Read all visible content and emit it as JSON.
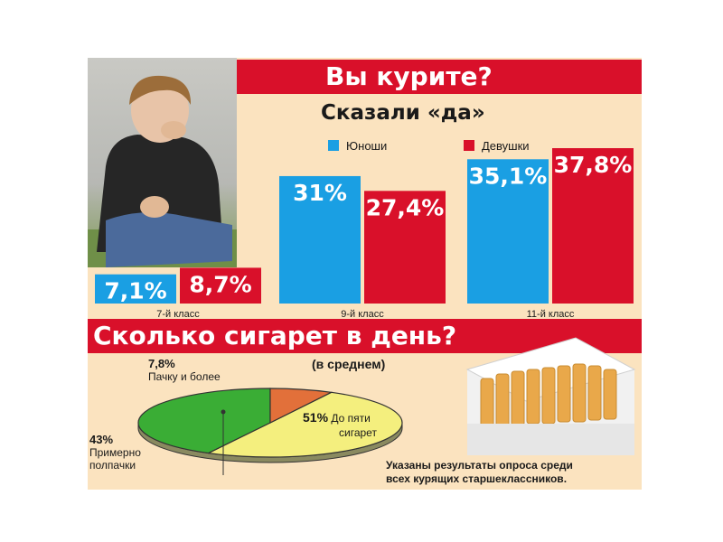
{
  "header": {
    "title": "Вы курите?",
    "subtitle": "Сказали «да»"
  },
  "colors": {
    "boys": "#1a9fe3",
    "girls": "#d9102a",
    "banner": "#d9102a",
    "background": "#fbe3bf"
  },
  "chart_data": [
    {
      "type": "bar",
      "title": "Вы курите?",
      "subtitle": "Сказали «да»",
      "categories": [
        "7-й класс",
        "9-й класс",
        "11-й класс"
      ],
      "series": [
        {
          "name": "Юноши",
          "values": [
            7.1,
            31,
            35.1
          ],
          "labels": [
            "7,1%",
            "31%",
            "35,1%"
          ]
        },
        {
          "name": "Девушки",
          "values": [
            8.7,
            27.4,
            37.8
          ],
          "labels": [
            "8,7%",
            "27,4%",
            "37,8%"
          ]
        }
      ],
      "ylim": [
        0,
        40
      ],
      "legend": "top"
    },
    {
      "type": "pie",
      "title": "Сколько сигарет в день?",
      "subtitle": "(в среднем)",
      "slices": [
        {
          "value": 51,
          "percent_label": "51%",
          "name": "До пяти сигарет",
          "color": "#f4ef7e"
        },
        {
          "value": 43,
          "percent_label": "43%",
          "name": "Примерно полпачки",
          "color": "#3aad35"
        },
        {
          "value": 7.8,
          "percent_label": "7,8%",
          "name": "Пачку и более",
          "color": "#e2703a"
        }
      ]
    }
  ],
  "pie_labels": {
    "five": {
      "pct": "51%",
      "line1": "До пяти",
      "line2": "сигарет"
    },
    "half": {
      "pct": "43%",
      "line1": "Примерно",
      "line2": "полпачки"
    },
    "pack": {
      "pct": "7,8%",
      "line1": "Пачку и более"
    }
  },
  "images": {
    "photo": "teenage-boy-smoking-photo",
    "cigarettes": "cigarette-pack-photo"
  },
  "footer": {
    "line1": "Указаны результаты опроса среди",
    "line2": "всех курящих старшеклассников."
  }
}
